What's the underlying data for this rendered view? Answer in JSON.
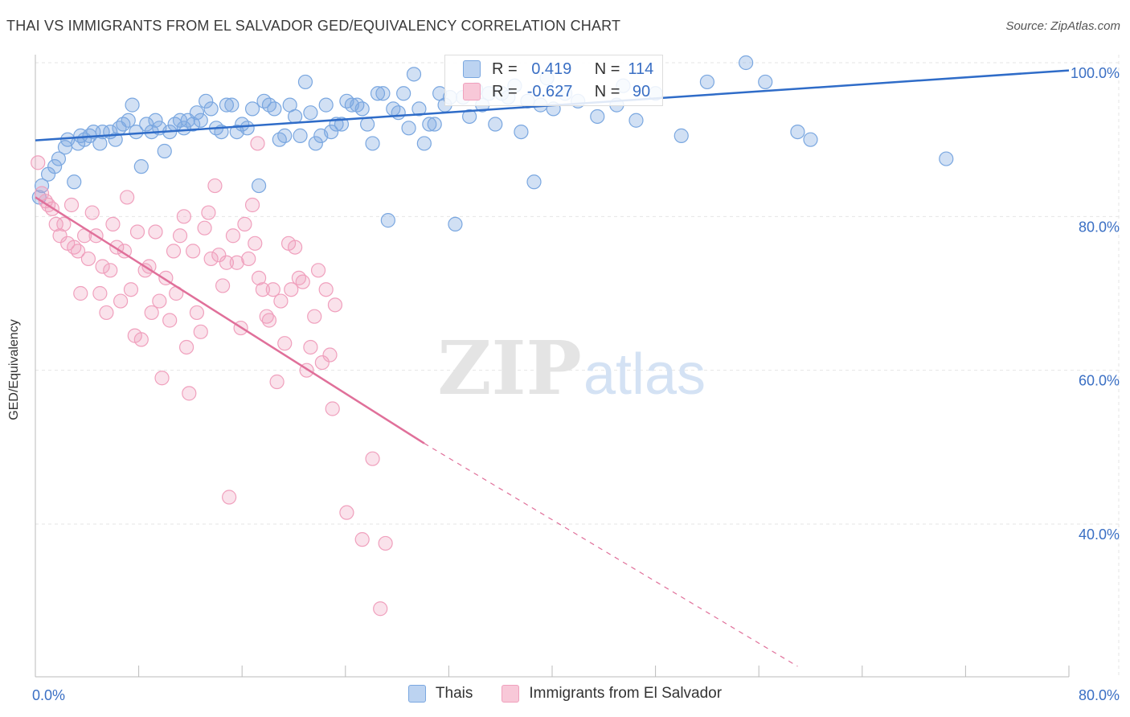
{
  "header": {
    "title": "THAI VS IMMIGRANTS FROM EL SALVADOR GED/EQUIVALENCY CORRELATION CHART",
    "source": "Source: ZipAtlas.com"
  },
  "watermark": {
    "zip": "ZIP",
    "atlas": "atlas"
  },
  "legend": {
    "rows": [
      {
        "r_label": "R =",
        "r_value": " 0.419",
        "n_label": "N =",
        "n_value": "114"
      },
      {
        "r_label": "R =",
        "r_value": "-0.627",
        "n_label": "N =",
        "n_value": " 90"
      }
    ]
  },
  "colors": {
    "blue": "#7aa7e0",
    "blue_line": "#2f6cc8",
    "pink": "#f0a0bd",
    "pink_line": "#e0709a",
    "tick_label": "#3a6fc4"
  },
  "chart_data": {
    "type": "scatter",
    "ylabel": "GED/Equivalency",
    "xlim": [
      0,
      80
    ],
    "ylim": [
      22,
      104
    ],
    "x_tick_labels": [
      {
        "value": 0,
        "label": "0.0%"
      },
      {
        "value": 80,
        "label": "80.0%"
      }
    ],
    "y_tick_labels": [
      {
        "value": 100,
        "label": "100.0%"
      },
      {
        "value": 80,
        "label": "80.0%"
      },
      {
        "value": 60,
        "label": "60.0%"
      },
      {
        "value": 40,
        "label": "40.0%"
      }
    ],
    "grid": true,
    "series": [
      {
        "name": "Thais",
        "color": "#7aa7e0",
        "trend": {
          "x": [
            0,
            80
          ],
          "y": [
            89.9,
            99.0
          ],
          "dashed_after": null
        },
        "points": [
          [
            0.3,
            82.5
          ],
          [
            0.5,
            84.0
          ],
          [
            1.0,
            85.5
          ],
          [
            1.5,
            86.5
          ],
          [
            1.8,
            87.5
          ],
          [
            2.3,
            89.0
          ],
          [
            2.5,
            90.0
          ],
          [
            3.0,
            84.5
          ],
          [
            3.3,
            89.5
          ],
          [
            3.5,
            90.5
          ],
          [
            3.8,
            90.0
          ],
          [
            4.2,
            90.5
          ],
          [
            4.5,
            91.0
          ],
          [
            5.0,
            89.5
          ],
          [
            5.2,
            91.0
          ],
          [
            5.8,
            91.0
          ],
          [
            6.2,
            90.0
          ],
          [
            6.5,
            91.5
          ],
          [
            6.8,
            92.0
          ],
          [
            7.2,
            92.5
          ],
          [
            7.5,
            94.5
          ],
          [
            7.8,
            91.0
          ],
          [
            8.2,
            86.5
          ],
          [
            8.6,
            92.0
          ],
          [
            9.0,
            91.0
          ],
          [
            9.3,
            92.5
          ],
          [
            9.6,
            91.5
          ],
          [
            10.0,
            88.5
          ],
          [
            10.4,
            91.0
          ],
          [
            10.8,
            92.0
          ],
          [
            11.2,
            92.5
          ],
          [
            11.5,
            91.5
          ],
          [
            11.8,
            92.5
          ],
          [
            12.2,
            92.0
          ],
          [
            12.5,
            93.5
          ],
          [
            12.8,
            92.5
          ],
          [
            13.2,
            95.0
          ],
          [
            13.6,
            94.0
          ],
          [
            14.0,
            91.5
          ],
          [
            14.4,
            91.0
          ],
          [
            14.8,
            94.5
          ],
          [
            15.2,
            94.5
          ],
          [
            15.6,
            91.0
          ],
          [
            16.0,
            92.0
          ],
          [
            16.4,
            91.5
          ],
          [
            16.8,
            94.0
          ],
          [
            17.3,
            84.0
          ],
          [
            17.7,
            95.0
          ],
          [
            18.1,
            94.5
          ],
          [
            18.5,
            94.0
          ],
          [
            18.9,
            90.0
          ],
          [
            19.3,
            90.5
          ],
          [
            19.7,
            94.5
          ],
          [
            20.1,
            93.0
          ],
          [
            20.5,
            90.5
          ],
          [
            20.9,
            97.5
          ],
          [
            21.3,
            93.5
          ],
          [
            21.7,
            89.5
          ],
          [
            22.1,
            90.5
          ],
          [
            22.5,
            94.5
          ],
          [
            22.9,
            91.0
          ],
          [
            23.3,
            92.0
          ],
          [
            23.7,
            92.0
          ],
          [
            24.1,
            95.0
          ],
          [
            24.5,
            94.5
          ],
          [
            24.9,
            94.5
          ],
          [
            25.3,
            94.0
          ],
          [
            25.7,
            92.0
          ],
          [
            26.1,
            89.5
          ],
          [
            26.5,
            96.0
          ],
          [
            26.9,
            96.0
          ],
          [
            27.3,
            79.5
          ],
          [
            27.7,
            94.0
          ],
          [
            28.1,
            93.5
          ],
          [
            28.5,
            96.0
          ],
          [
            28.9,
            91.5
          ],
          [
            29.3,
            98.5
          ],
          [
            29.7,
            94.0
          ],
          [
            30.1,
            89.5
          ],
          [
            30.5,
            92.0
          ],
          [
            30.9,
            92.0
          ],
          [
            31.3,
            96.0
          ],
          [
            31.7,
            94.5
          ],
          [
            32.1,
            95.5
          ],
          [
            32.5,
            79.0
          ],
          [
            33.1,
            95.5
          ],
          [
            33.6,
            93.0
          ],
          [
            34.1,
            96.5
          ],
          [
            34.6,
            94.5
          ],
          [
            35.1,
            96.0
          ],
          [
            35.6,
            92.0
          ],
          [
            36.1,
            96.0
          ],
          [
            36.6,
            95.5
          ],
          [
            37.1,
            97.0
          ],
          [
            37.6,
            91.0
          ],
          [
            38.1,
            95.0
          ],
          [
            38.6,
            84.5
          ],
          [
            39.1,
            94.5
          ],
          [
            39.6,
            98.0
          ],
          [
            40.1,
            94.0
          ],
          [
            41.0,
            96.0
          ],
          [
            42.0,
            95.0
          ],
          [
            43.5,
            93.0
          ],
          [
            45.0,
            94.5
          ],
          [
            46.5,
            92.5
          ],
          [
            48.0,
            96.0
          ],
          [
            50.0,
            90.5
          ],
          [
            52.0,
            97.5
          ],
          [
            55.0,
            100.0
          ],
          [
            56.5,
            97.5
          ],
          [
            59.0,
            91.0
          ],
          [
            60.0,
            90.0
          ],
          [
            70.5,
            87.5
          ],
          [
            45.5,
            97.0
          ]
        ]
      },
      {
        "name": "Immigrants from El Salvador",
        "color": "#f0a0bd",
        "trend": {
          "x": [
            0,
            30.1
          ],
          "y": [
            82.5,
            50.5
          ],
          "dashed_to": [
            59,
            21.5
          ]
        },
        "points": [
          [
            0.2,
            87.0
          ],
          [
            0.5,
            83.0
          ],
          [
            0.8,
            82.0
          ],
          [
            1.0,
            81.5
          ],
          [
            1.3,
            81.0
          ],
          [
            1.6,
            79.0
          ],
          [
            1.9,
            77.5
          ],
          [
            2.2,
            79.0
          ],
          [
            2.5,
            76.5
          ],
          [
            2.8,
            81.5
          ],
          [
            3.0,
            76.0
          ],
          [
            3.3,
            75.5
          ],
          [
            3.5,
            70.0
          ],
          [
            3.8,
            77.5
          ],
          [
            4.1,
            74.5
          ],
          [
            4.4,
            80.5
          ],
          [
            4.7,
            77.5
          ],
          [
            5.0,
            70.0
          ],
          [
            5.2,
            73.5
          ],
          [
            5.5,
            67.5
          ],
          [
            5.8,
            73.0
          ],
          [
            6.0,
            79.0
          ],
          [
            6.3,
            76.0
          ],
          [
            6.6,
            69.0
          ],
          [
            6.9,
            75.5
          ],
          [
            7.1,
            82.5
          ],
          [
            7.4,
            70.5
          ],
          [
            7.7,
            64.5
          ],
          [
            7.9,
            78.0
          ],
          [
            8.2,
            64.0
          ],
          [
            8.5,
            73.0
          ],
          [
            8.8,
            73.5
          ],
          [
            9.0,
            67.5
          ],
          [
            9.3,
            78.0
          ],
          [
            9.6,
            69.0
          ],
          [
            9.8,
            59.0
          ],
          [
            10.1,
            72.0
          ],
          [
            10.4,
            66.5
          ],
          [
            10.7,
            75.5
          ],
          [
            10.9,
            70.0
          ],
          [
            11.2,
            77.5
          ],
          [
            11.5,
            80.0
          ],
          [
            11.7,
            63.0
          ],
          [
            11.9,
            57.0
          ],
          [
            12.2,
            75.5
          ],
          [
            12.5,
            67.5
          ],
          [
            12.8,
            65.0
          ],
          [
            13.1,
            78.5
          ],
          [
            13.4,
            80.5
          ],
          [
            13.6,
            74.5
          ],
          [
            13.9,
            84.0
          ],
          [
            14.2,
            75.0
          ],
          [
            14.5,
            71.0
          ],
          [
            14.8,
            74.0
          ],
          [
            15.0,
            43.5
          ],
          [
            15.3,
            77.5
          ],
          [
            15.6,
            74.0
          ],
          [
            15.9,
            65.5
          ],
          [
            16.2,
            79.0
          ],
          [
            16.5,
            74.5
          ],
          [
            16.8,
            81.5
          ],
          [
            17.0,
            76.5
          ],
          [
            17.3,
            72.0
          ],
          [
            17.6,
            70.5
          ],
          [
            17.9,
            67.0
          ],
          [
            18.1,
            66.5
          ],
          [
            18.4,
            70.5
          ],
          [
            18.7,
            58.5
          ],
          [
            19.0,
            69.0
          ],
          [
            19.3,
            63.5
          ],
          [
            19.6,
            76.5
          ],
          [
            19.8,
            70.5
          ],
          [
            20.1,
            76.0
          ],
          [
            20.4,
            72.0
          ],
          [
            20.7,
            71.5
          ],
          [
            21.0,
            60.0
          ],
          [
            21.3,
            63.0
          ],
          [
            21.6,
            67.0
          ],
          [
            21.9,
            73.0
          ],
          [
            22.2,
            61.0
          ],
          [
            22.5,
            70.5
          ],
          [
            22.8,
            62.0
          ],
          [
            23.0,
            55.0
          ],
          [
            23.2,
            68.5
          ],
          [
            24.1,
            41.5
          ],
          [
            25.3,
            38.0
          ],
          [
            26.1,
            48.5
          ],
          [
            26.7,
            29.0
          ],
          [
            27.1,
            37.5
          ],
          [
            17.2,
            89.5
          ]
        ]
      }
    ]
  }
}
